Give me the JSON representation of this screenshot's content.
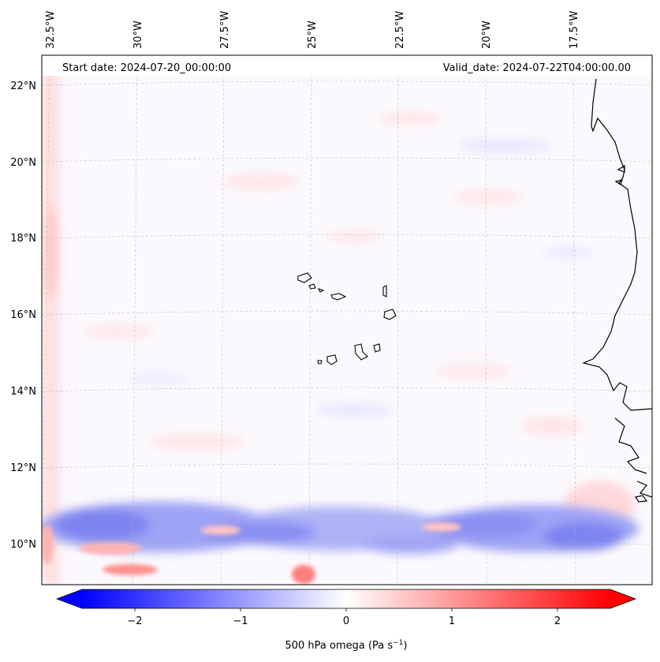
{
  "header": {
    "start_date": "Start date: 2024-07-20_00:00:00",
    "valid_date": "Valid_date: 2024-07-22T04:00:00.00"
  },
  "longitude_labels": [
    "32.5°W",
    "30°W",
    "27.5°W",
    "25°W",
    "22.5°W",
    "20°W",
    "17.5°W"
  ],
  "latitude_labels": [
    "22°N",
    "20°N",
    "18°N",
    "16°N",
    "14°N",
    "12°N",
    "10°N"
  ],
  "colorbar": {
    "ticks": [
      "−2",
      "−1",
      "0",
      "1",
      "2"
    ],
    "label": "500 hPa omega (Pa s",
    "label_sup": "−1",
    "label_close": ")",
    "min_color": "#0000ff",
    "mid_color": "#ffffff",
    "max_color": "#ff0000"
  },
  "colors": {
    "band_blue": "#6e73f0",
    "light_red": "#ffd9d9",
    "coast": "#000000",
    "grid": "#b0b0b0"
  }
}
